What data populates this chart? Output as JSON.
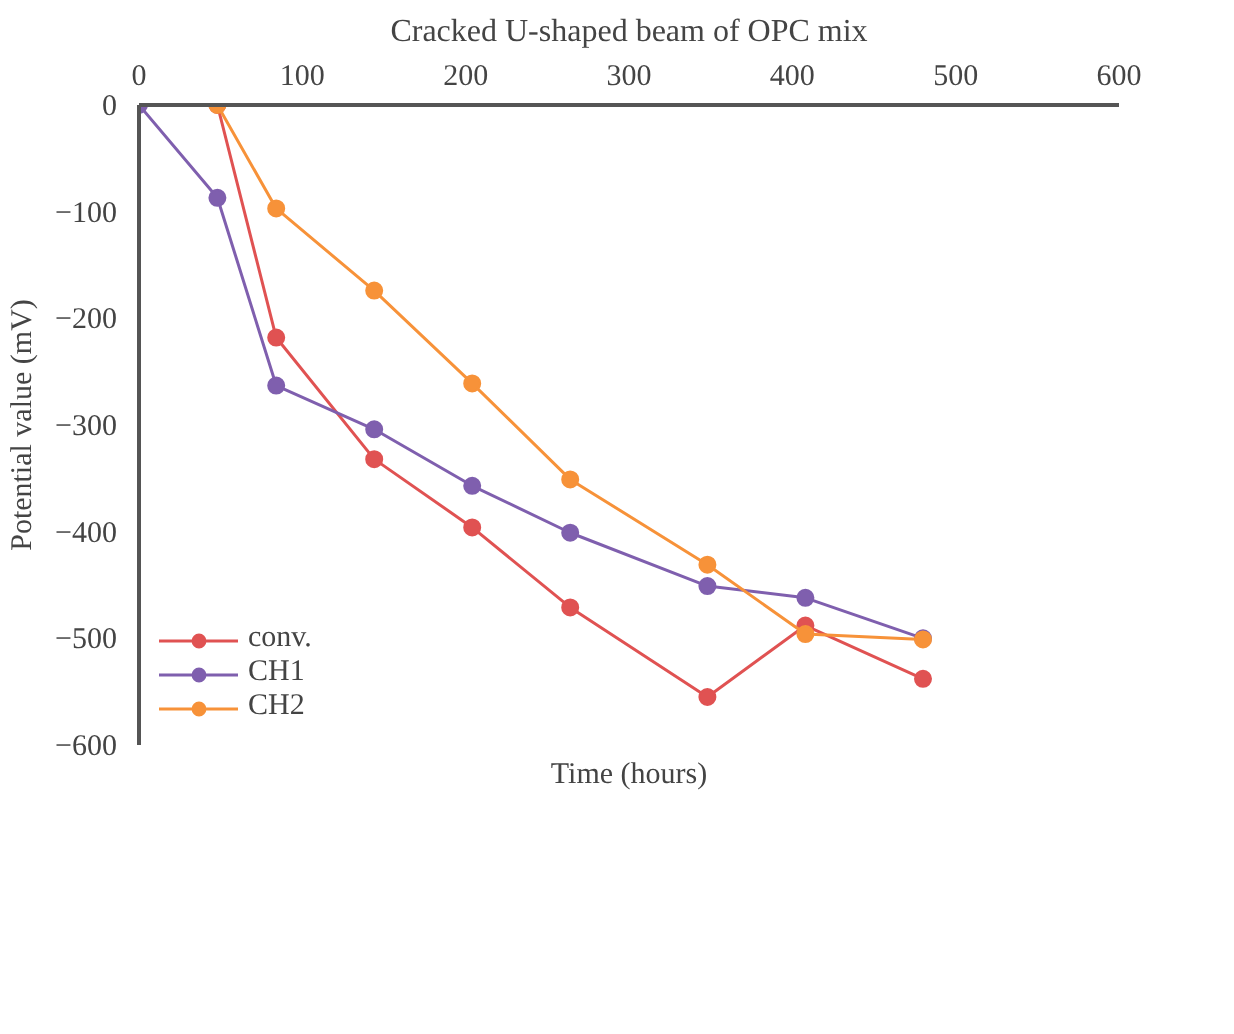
{
  "chart_data": {
    "type": "line",
    "title": "Cracked U-shaped beam of OPC mix",
    "xlabel": "Time (hours)",
    "ylabel": "Potential value (mV)",
    "xlim": [
      0,
      600
    ],
    "xticks": [
      0,
      100,
      200,
      300,
      400,
      500,
      600
    ],
    "ylim": [
      -600,
      0
    ],
    "yticks": [
      -600,
      -500,
      -400,
      -300,
      -200,
      -100,
      0
    ],
    "grid": false,
    "legend": "bottom left",
    "marker": "circle",
    "line_style": "solid",
    "series": [
      {
        "name": "conv.",
        "color": "#e05252",
        "x": [
          48,
          84,
          144,
          204,
          264,
          348,
          408,
          480
        ],
        "values": [
          0,
          -218,
          -332,
          -396,
          -471,
          -555,
          -488,
          -538
        ]
      },
      {
        "name": "CH1",
        "color": "#7f5fae",
        "x": [
          0,
          48,
          84,
          144,
          204,
          264,
          348,
          408,
          480
        ],
        "values": [
          0,
          -87,
          -263,
          -304,
          -357,
          -401,
          -451,
          -462,
          -500
        ]
      },
      {
        "name": "CH2",
        "color": "#f79239",
        "x": [
          48,
          84,
          144,
          204,
          264,
          348,
          408,
          480
        ],
        "values": [
          0,
          -97,
          -174,
          -261,
          -351,
          -431,
          -496,
          -501
        ]
      }
    ]
  }
}
